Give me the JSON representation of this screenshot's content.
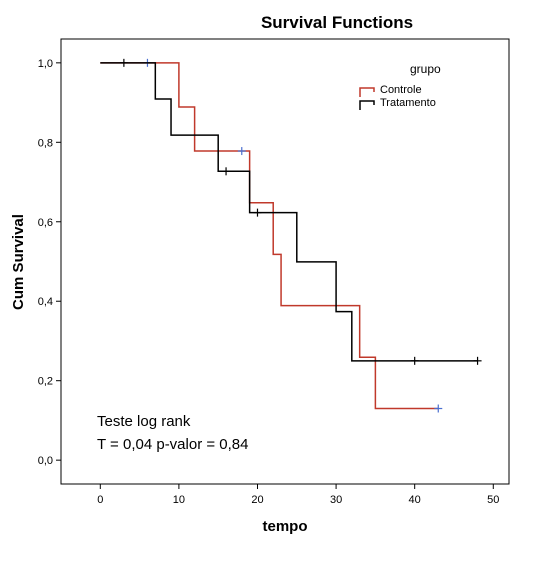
{
  "chart_data": {
    "type": "line",
    "step": true,
    "title": "Survival Functions",
    "xlabel": "tempo",
    "ylabel": "Cum Survival",
    "xlim": [
      -5,
      52
    ],
    "ylim": [
      -0.06,
      1.06
    ],
    "xticks": [
      0,
      10,
      20,
      30,
      40,
      50
    ],
    "yticks": [
      0.0,
      0.2,
      0.4,
      0.6,
      0.8,
      1.0
    ],
    "ytick_labels": [
      "0,0",
      "0,2",
      "0,4",
      "0,6",
      "0,8",
      "1,0"
    ],
    "grid": false,
    "legend": {
      "title": "grupo",
      "placement": "top-right"
    },
    "series": [
      {
        "name": "Controle",
        "color": "#c0392b",
        "steps": [
          [
            0,
            1.0
          ],
          [
            10,
            0.889
          ],
          [
            12,
            0.778
          ],
          [
            19,
            0.648
          ],
          [
            22,
            0.518
          ],
          [
            23,
            0.389
          ],
          [
            33,
            0.259
          ],
          [
            35,
            0.13
          ],
          [
            43,
            0.13
          ]
        ],
        "censored": [
          [
            6,
            1.0
          ],
          [
            18,
            0.778
          ],
          [
            43,
            0.13
          ]
        ],
        "censor_color": "#4a6fd0"
      },
      {
        "name": "Tratamento",
        "color": "#000000",
        "steps": [
          [
            0,
            1.0
          ],
          [
            7,
            0.909
          ],
          [
            9,
            0.818
          ],
          [
            15,
            0.727
          ],
          [
            19,
            0.623
          ],
          [
            25,
            0.499
          ],
          [
            30,
            0.374
          ],
          [
            32,
            0.25
          ],
          [
            48,
            0.25
          ]
        ],
        "censored": [
          [
            3,
            1.0
          ],
          [
            16,
            0.727
          ],
          [
            20,
            0.623
          ],
          [
            40,
            0.25
          ],
          [
            48,
            0.25
          ]
        ],
        "censor_color": "#000000"
      }
    ],
    "annotations": [
      "Teste log rank",
      "T = 0,04   p-valor = 0,84"
    ]
  }
}
